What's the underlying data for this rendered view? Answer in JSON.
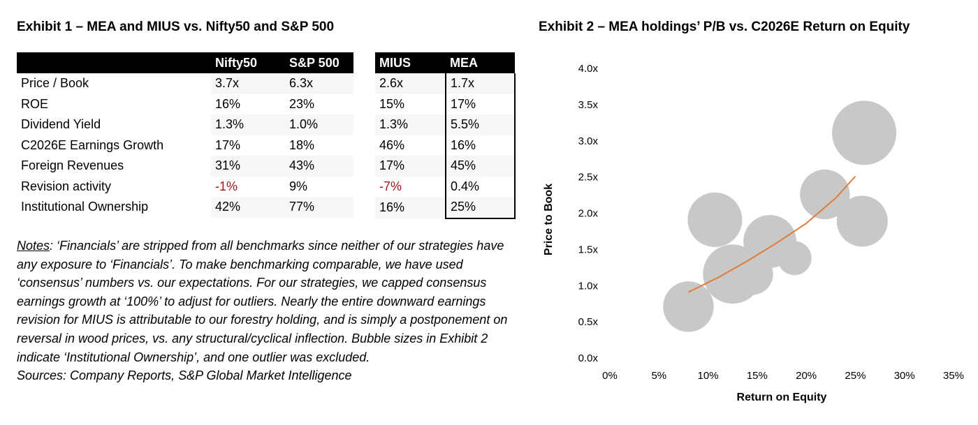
{
  "exhibit1": {
    "title": "Exhibit 1 – MEA and MIUS vs. Nifty50 and S&P 500",
    "table_a": {
      "headers": [
        "",
        "Nifty50",
        "S&P 500"
      ],
      "rows": [
        [
          "Price / Book",
          "3.7x",
          "6.3x"
        ],
        [
          "ROE",
          "16%",
          "23%"
        ],
        [
          "Dividend Yield",
          "1.3%",
          "1.0%"
        ],
        [
          "C2026E Earnings Growth",
          "17%",
          "18%"
        ],
        [
          "Foreign Revenues",
          "31%",
          "43%"
        ],
        [
          "Revision activity",
          "-1%",
          "9%"
        ],
        [
          "Institutional Ownership",
          "42%",
          "77%"
        ]
      ]
    },
    "table_b": {
      "headers": [
        "MIUS",
        "MEA"
      ],
      "rows": [
        [
          "2.6x",
          "1.7x"
        ],
        [
          "15%",
          "17%"
        ],
        [
          "1.3%",
          "5.5%"
        ],
        [
          "46%",
          "16%"
        ],
        [
          "17%",
          "45%"
        ],
        [
          "-7%",
          "0.4%"
        ],
        [
          "16%",
          "25%"
        ]
      ]
    },
    "negative_color": "#a01818"
  },
  "notes": {
    "label": "Notes",
    "text": ": ‘Financials’ are stripped from all benchmarks since neither of our strategies have any exposure to ‘Financials’.  To make benchmarking comparable, we have used ‘consensus’ numbers vs. our expectations.  For our strategies, we capped consensus earnings growth at ‘100%’ to adjust for outliers.  Nearly the entire downward earnings revision for MIUS is attributable to our forestry holding, and is simply a postponement on reversal in wood prices, vs. any structural/cyclical inflection.  Bubble sizes in Exhibit 2 indicate ‘Institutional Ownership’, and one outlier was excluded.",
    "sources": "Sources: Company Reports, S&P Global Market Intelligence"
  },
  "chart_data": {
    "type": "scatter",
    "title": "Exhibit 2 – MEA holdings’ P/B vs. C2026E Return on Equity",
    "xlabel": "Return on Equity",
    "ylabel": "Price to Book",
    "xlim": [
      0,
      0.35
    ],
    "ylim": [
      0,
      4.0
    ],
    "x_ticks": [
      "0%",
      "5%",
      "10%",
      "15%",
      "20%",
      "25%",
      "30%",
      "35%"
    ],
    "y_ticks": [
      "0.0x",
      "0.5x",
      "1.0x",
      "1.5x",
      "2.0x",
      "2.5x",
      "3.0x",
      "3.5x",
      "4.0x"
    ],
    "bubble_color": "#c8c8c8",
    "trend_color": "#e07b39",
    "points": [
      {
        "x": 0.08,
        "y": 0.7,
        "size": 0.62
      },
      {
        "x": 0.107,
        "y": 1.9,
        "size": 0.72
      },
      {
        "x": 0.125,
        "y": 1.15,
        "size": 0.85
      },
      {
        "x": 0.145,
        "y": 1.15,
        "size": 0.42
      },
      {
        "x": 0.163,
        "y": 1.6,
        "size": 0.68
      },
      {
        "x": 0.188,
        "y": 1.37,
        "size": 0.28
      },
      {
        "x": 0.219,
        "y": 2.25,
        "size": 0.6
      },
      {
        "x": 0.259,
        "y": 3.1,
        "size": 1.0
      },
      {
        "x": 0.257,
        "y": 1.88,
        "size": 0.63
      }
    ],
    "trendline": {
      "x": [
        0.08,
        0.11,
        0.14,
        0.17,
        0.2,
        0.23,
        0.25
      ],
      "y": [
        0.9,
        1.1,
        1.33,
        1.58,
        1.85,
        2.2,
        2.5
      ]
    },
    "grid": false,
    "legend": "none"
  }
}
